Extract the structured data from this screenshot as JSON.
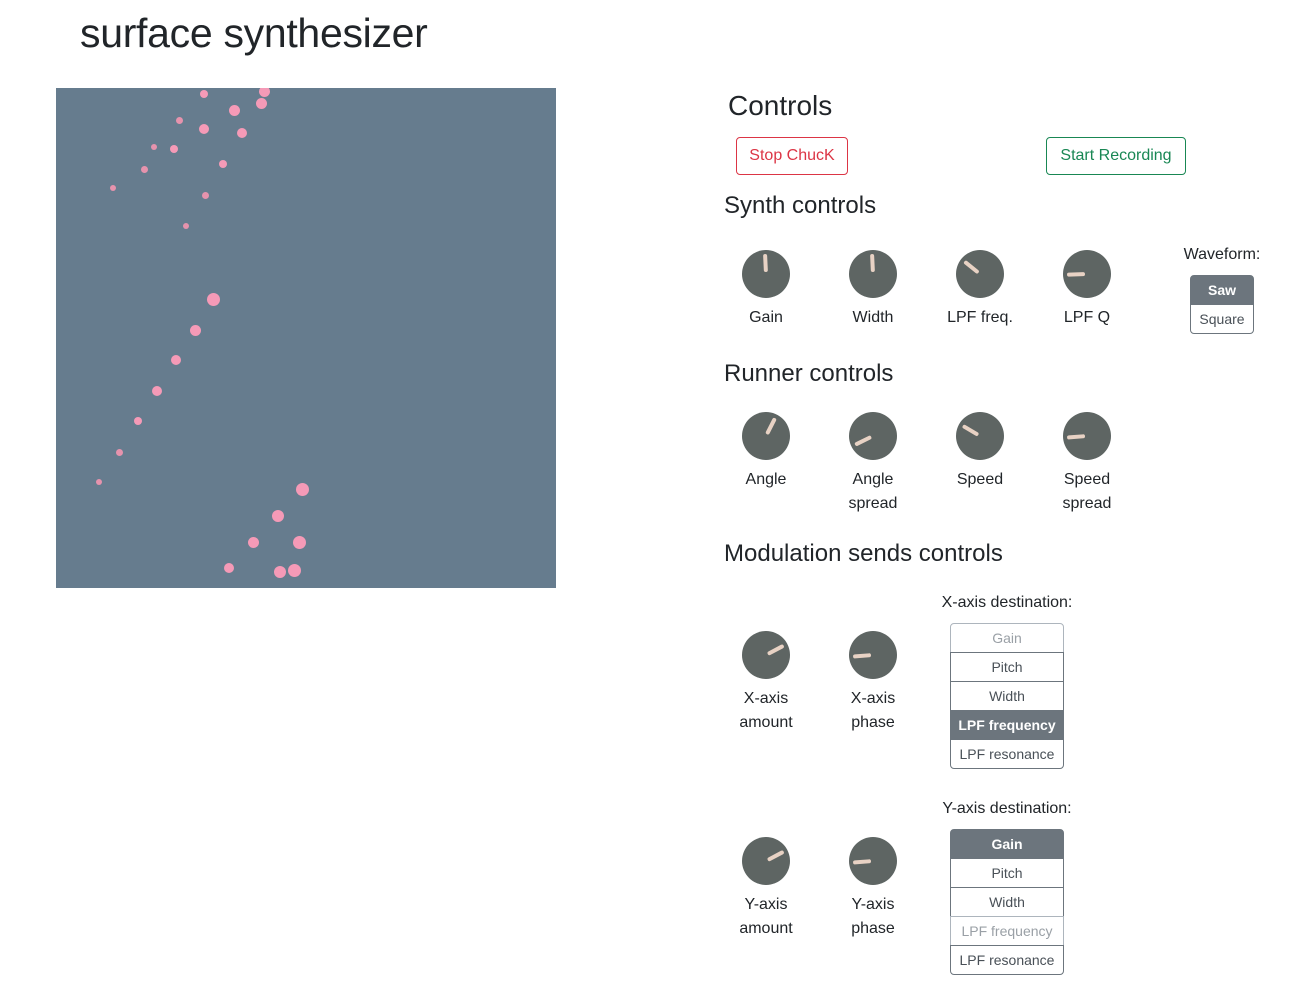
{
  "app": {
    "title": "surface synthesizer"
  },
  "controls": {
    "title": "Controls",
    "stop_label": "Stop ChucK",
    "record_label": "Start Recording"
  },
  "synth": {
    "title": "Synth controls",
    "knobs": [
      {
        "label": "Gain",
        "value": 0.49
      },
      {
        "label": "Width",
        "value": 0.49
      },
      {
        "label": "LPF freq.",
        "value": 0.31
      },
      {
        "label": "LPF Q",
        "value": 0.16
      }
    ],
    "waveform": {
      "label": "Waveform:",
      "options": [
        "Saw",
        "Square"
      ],
      "selected": "Saw"
    }
  },
  "runner": {
    "title": "Runner controls",
    "knobs": [
      {
        "label_line1": "Angle",
        "label_line2": "",
        "value": 0.6
      },
      {
        "label_line1": "Angle",
        "label_line2": "spread",
        "value": 0.07
      },
      {
        "label_line1": "Speed",
        "label_line2": "",
        "value": 0.28
      },
      {
        "label_line1": "Speed",
        "label_line2": "spread",
        "value": 0.15
      }
    ]
  },
  "modulation": {
    "title": "Modulation sends controls",
    "x_axis": {
      "knobs": [
        {
          "label_line1": "X-axis",
          "label_line2": "amount",
          "value": 0.73
        },
        {
          "label_line1": "X-axis",
          "label_line2": "phase",
          "value": 0.15
        }
      ],
      "destination_label": "X-axis destination:",
      "options": [
        "Gain",
        "Pitch",
        "Width",
        "LPF frequency",
        "LPF resonance"
      ],
      "selected": "LPF frequency",
      "disabled": [
        "Gain"
      ]
    },
    "y_axis": {
      "knobs": [
        {
          "label_line1": "Y-axis",
          "label_line2": "amount",
          "value": 0.73
        },
        {
          "label_line1": "Y-axis",
          "label_line2": "phase",
          "value": 0.15
        }
      ],
      "destination_label": "Y-axis destination:",
      "options": [
        "Gain",
        "Pitch",
        "Width",
        "LPF frequency",
        "LPF resonance"
      ],
      "selected": "Gain",
      "disabled": [
        "LPF frequency"
      ]
    }
  },
  "colors": {
    "surface": "#667c8e",
    "dot": "#f59ab7",
    "knob": "#5e6563",
    "knob_pointer": "#e8d2c4"
  }
}
